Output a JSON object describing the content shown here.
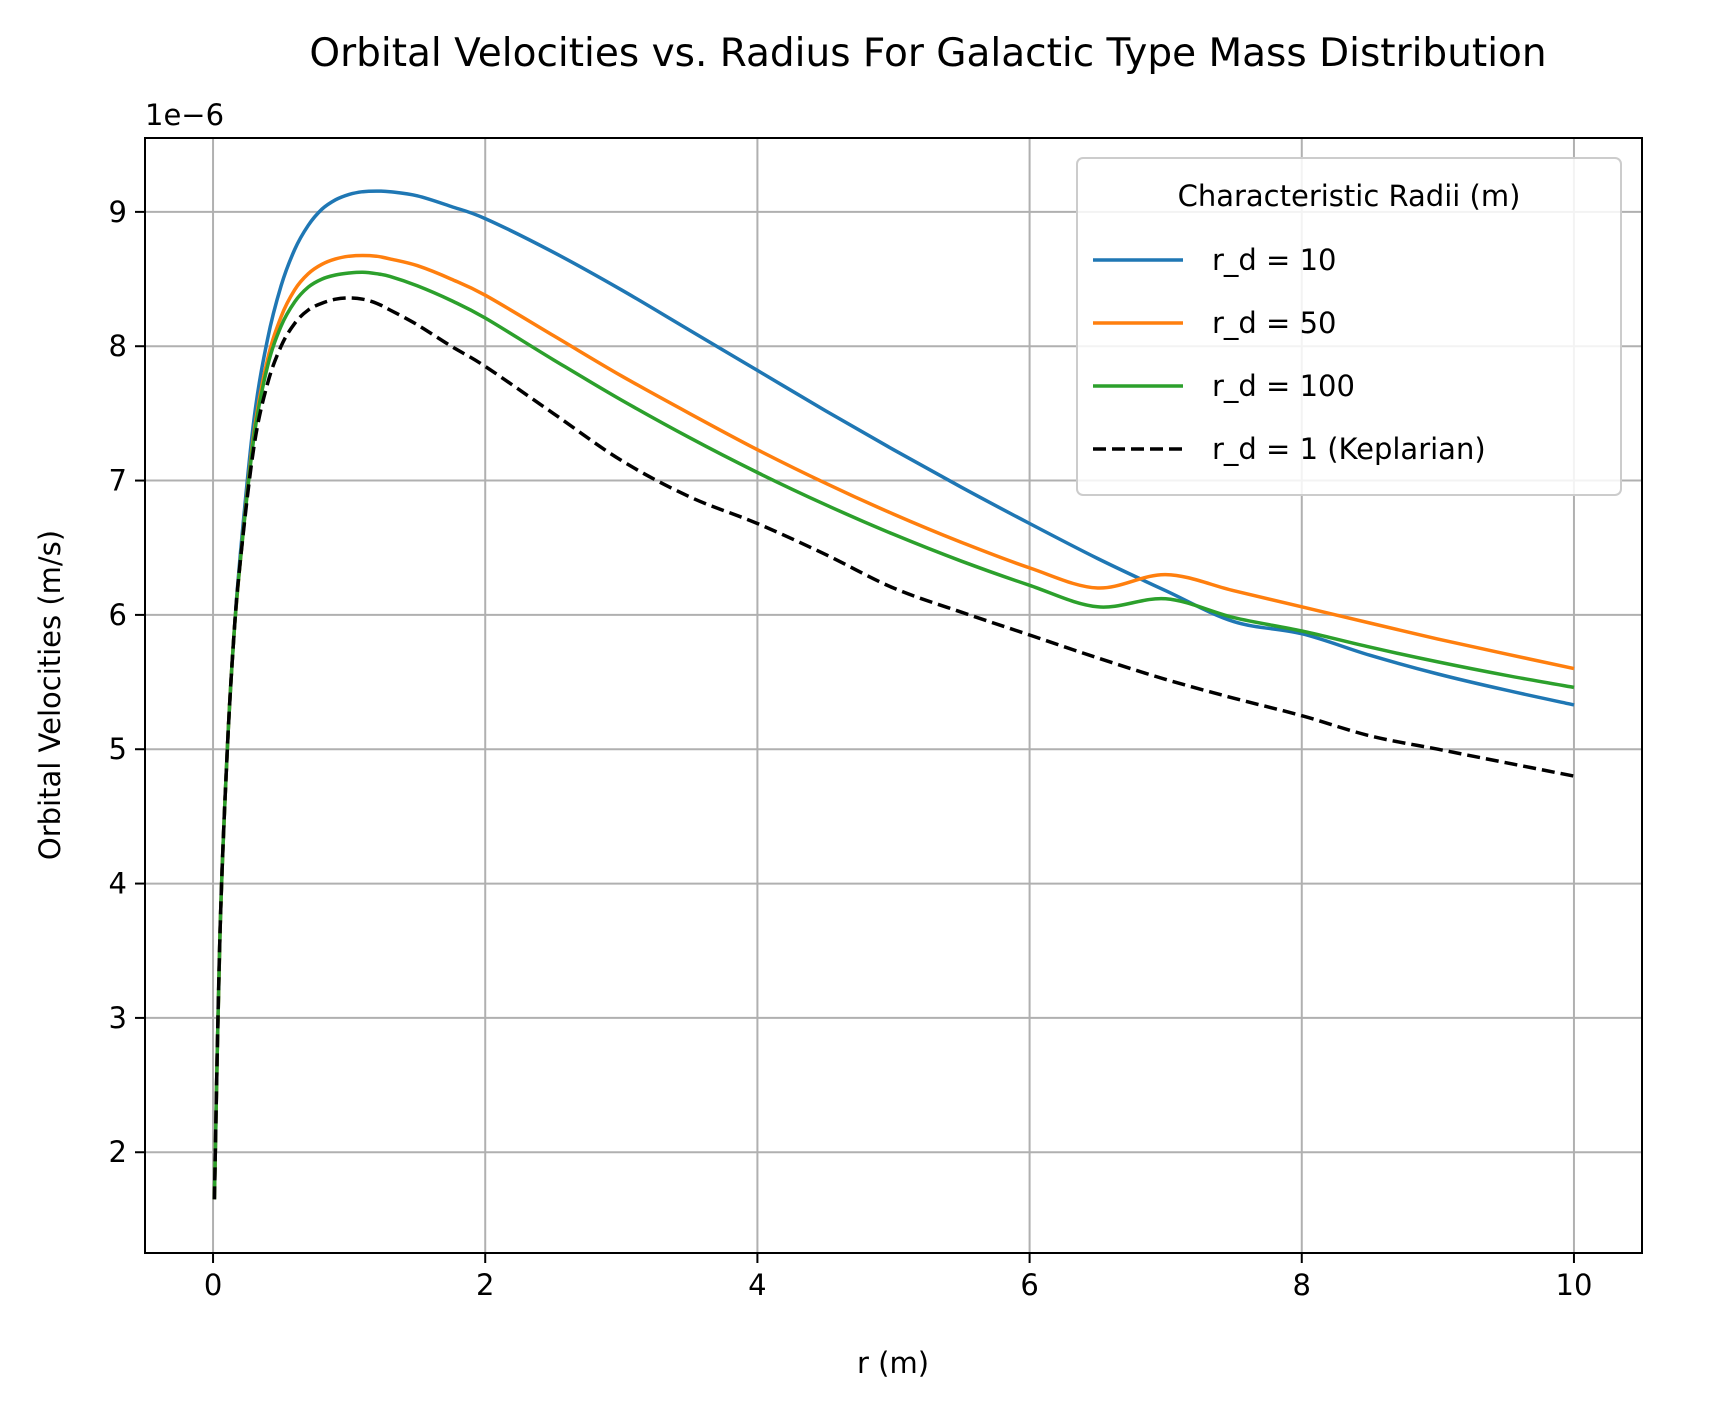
{
  "chart_data": {
    "type": "line",
    "title": "Orbital Velocities vs. Radius For Galactic Type Mass Distribution",
    "xlabel": "r (m)",
    "ylabel": "Orbital Velocities (m/s)",
    "y_offset_label": "1e−6",
    "xlim": [
      -0.5,
      10.5
    ],
    "ylim": [
      1.25,
      9.55
    ],
    "x_ticks": [
      0,
      2,
      4,
      6,
      8,
      10
    ],
    "x_tick_labels": [
      "0",
      "2",
      "4",
      "6",
      "8",
      "10"
    ],
    "y_ticks": [
      2,
      3,
      4,
      5,
      6,
      7,
      8,
      9
    ],
    "y_tick_labels": [
      "2",
      "3",
      "4",
      "5",
      "6",
      "7",
      "8",
      "9"
    ],
    "grid": true,
    "legend": {
      "title": "Characteristic Radii (m)",
      "placement": "top-right"
    },
    "series": [
      {
        "name": "r_d = 10",
        "color": "#1f77b4",
        "dash": "solid",
        "x": [
          0.01,
          0.05,
          0.1,
          0.15,
          0.2,
          0.3,
          0.4,
          0.5,
          0.6,
          0.7,
          0.8,
          0.9,
          1.0,
          1.1,
          1.2,
          1.3,
          1.5,
          1.75,
          2.0,
          2.5,
          3.0,
          3.5,
          4.0,
          4.5,
          5.0,
          5.5,
          6.0,
          6.5,
          7.0,
          7.5,
          8.0,
          8.5,
          9.0,
          9.5,
          10.0
        ],
        "y": [
          1.65,
          3.6,
          4.9,
          5.8,
          6.45,
          7.45,
          8.05,
          8.45,
          8.72,
          8.9,
          9.02,
          9.09,
          9.13,
          9.15,
          9.155,
          9.15,
          9.12,
          9.04,
          8.95,
          8.7,
          8.42,
          8.12,
          7.82,
          7.52,
          7.23,
          6.95,
          6.68,
          6.42,
          6.18,
          5.95,
          5.86,
          5.7,
          5.56,
          5.44,
          5.33
        ]
      },
      {
        "name": "r_d = 50",
        "color": "#ff7f0e",
        "dash": "solid",
        "x": [
          0.01,
          0.05,
          0.1,
          0.15,
          0.2,
          0.3,
          0.4,
          0.5,
          0.6,
          0.7,
          0.8,
          0.9,
          1.0,
          1.1,
          1.2,
          1.3,
          1.5,
          1.75,
          2.0,
          2.5,
          3.0,
          3.5,
          4.0,
          4.5,
          5.0,
          5.5,
          6.0,
          6.5,
          7.0,
          7.5,
          8.0,
          8.5,
          9.0,
          9.5,
          10.0
        ],
        "y": [
          1.65,
          3.6,
          4.9,
          5.8,
          6.4,
          7.35,
          7.9,
          8.22,
          8.42,
          8.54,
          8.61,
          8.65,
          8.67,
          8.675,
          8.67,
          8.65,
          8.6,
          8.5,
          8.38,
          8.08,
          7.78,
          7.5,
          7.23,
          6.98,
          6.75,
          6.54,
          6.35,
          6.2,
          6.3,
          6.18,
          6.06,
          5.94,
          5.82,
          5.71,
          5.6
        ]
      },
      {
        "name": "r_d = 100",
        "color": "#2ca02c",
        "dash": "solid",
        "x": [
          0.01,
          0.05,
          0.1,
          0.15,
          0.2,
          0.3,
          0.4,
          0.5,
          0.6,
          0.7,
          0.8,
          0.9,
          1.0,
          1.1,
          1.2,
          1.3,
          1.5,
          1.75,
          2.0,
          2.5,
          3.0,
          3.5,
          4.0,
          4.5,
          5.0,
          5.5,
          6.0,
          6.5,
          7.0,
          7.5,
          8.0,
          8.5,
          9.0,
          9.5,
          10.0
        ],
        "y": [
          1.65,
          3.6,
          4.9,
          5.8,
          6.4,
          7.32,
          7.85,
          8.15,
          8.33,
          8.44,
          8.5,
          8.53,
          8.545,
          8.55,
          8.54,
          8.52,
          8.45,
          8.34,
          8.21,
          7.9,
          7.6,
          7.32,
          7.06,
          6.82,
          6.6,
          6.4,
          6.22,
          6.06,
          6.12,
          5.98,
          5.88,
          5.76,
          5.65,
          5.55,
          5.46
        ]
      },
      {
        "name": "r_d = 1 (Keplarian)",
        "color": "#000000",
        "dash": "dashed",
        "x": [
          0.01,
          0.05,
          0.1,
          0.15,
          0.2,
          0.3,
          0.4,
          0.5,
          0.6,
          0.7,
          0.8,
          0.9,
          1.0,
          1.1,
          1.2,
          1.3,
          1.5,
          1.75,
          2.0,
          2.5,
          3.0,
          3.5,
          4.0,
          4.5,
          5.0,
          5.5,
          6.0,
          6.5,
          7.0,
          7.5,
          8.0,
          8.5,
          9.0,
          9.5,
          10.0
        ],
        "y": [
          1.65,
          3.6,
          4.9,
          5.8,
          6.4,
          7.25,
          7.72,
          8.0,
          8.17,
          8.27,
          8.32,
          8.35,
          8.36,
          8.35,
          8.32,
          8.27,
          8.16,
          8.0,
          7.85,
          7.5,
          7.15,
          6.88,
          6.68,
          6.45,
          6.2,
          6.02,
          5.85,
          5.68,
          5.52,
          5.38,
          5.25,
          5.1,
          5.0,
          4.9,
          4.8
        ]
      }
    ]
  }
}
